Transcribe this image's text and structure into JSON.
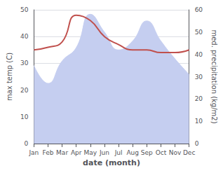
{
  "chart_data": {
    "type": "line",
    "xlabel": "date (month)",
    "ylabel": "max temp (C)",
    "y2label": "med. precipitation (kg/m2)",
    "categories": [
      "Jan",
      "Feb",
      "Mar",
      "Apr",
      "May",
      "Jun",
      "Jul",
      "Aug",
      "Sep",
      "Oct",
      "Nov",
      "Dec"
    ],
    "series": [
      {
        "type": "area",
        "axis": "y2",
        "color": "#c5cef0",
        "values": [
          35,
          27,
          37,
          43,
          58,
          50,
          42,
          46,
          55,
          46,
          38,
          31
        ]
      },
      {
        "type": "line",
        "axis": "y",
        "color": "#c0504d",
        "values": [
          35,
          36,
          38,
          48,
          46,
          40,
          37,
          35,
          35,
          34,
          34,
          35
        ]
      }
    ],
    "ylim": [
      0,
      50
    ],
    "yticks": [
      0,
      10,
      20,
      30,
      40,
      50
    ],
    "y2lim": [
      0,
      60
    ],
    "y2ticks": [
      0,
      10,
      20,
      30,
      40,
      50,
      60
    ],
    "grid": true
  }
}
